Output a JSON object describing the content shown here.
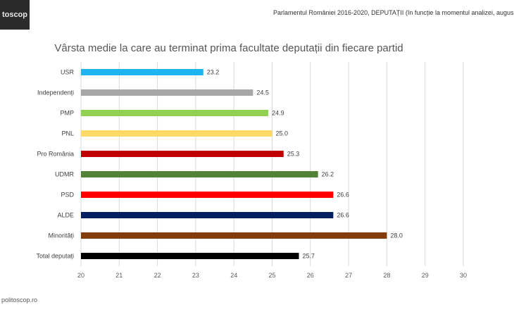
{
  "logo_text": "toscop",
  "header_note": "Parlamentul României 2016-2020, DEPUTAȚII (în funcție la momentul analizei, augus",
  "footer_text": "politoscop.ro",
  "chart_data": {
    "type": "bar",
    "orientation": "horizontal",
    "title": "Vârsta medie la care au terminat prima facultate deputații din fiecare partid",
    "categories": [
      "USR",
      "Independenți",
      "PMP",
      "PNL",
      "Pro România",
      "UDMR",
      "PSD",
      "ALDE",
      "Minorități",
      "Total deputați"
    ],
    "values": [
      23.2,
      24.5,
      24.9,
      25.0,
      25.3,
      26.2,
      26.6,
      26.6,
      28.0,
      25.7
    ],
    "value_labels": [
      "23.2",
      "24.5",
      "24.9",
      "25.0",
      "25.3",
      "26.2",
      "26.6",
      "26.6",
      "28.0",
      "25.7"
    ],
    "colors": [
      "#1fb4f0",
      "#a6a6a6",
      "#92d050",
      "#ffd966",
      "#c00000",
      "#548235",
      "#ff0000",
      "#002060",
      "#843c0c",
      "#000000"
    ],
    "xlim": [
      20,
      30
    ],
    "xticks": [
      "20",
      "21",
      "22",
      "23",
      "24",
      "25",
      "26",
      "27",
      "28",
      "29",
      "30"
    ],
    "grid": true,
    "legend": "none"
  }
}
